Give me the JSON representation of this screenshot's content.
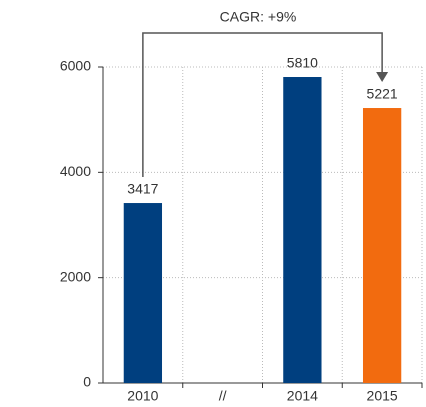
{
  "chart_data": {
    "type": "bar",
    "annotation": "CAGR: +9%",
    "categories": [
      "2010",
      "//",
      "2014",
      "2015"
    ],
    "values": [
      3417,
      null,
      5810,
      5221
    ],
    "colors": [
      "#003f7f",
      null,
      "#003f7f",
      "#f26b0f"
    ],
    "ylim": [
      0,
      6000
    ],
    "yticks": [
      0,
      2000,
      4000,
      6000
    ],
    "grid": true
  }
}
